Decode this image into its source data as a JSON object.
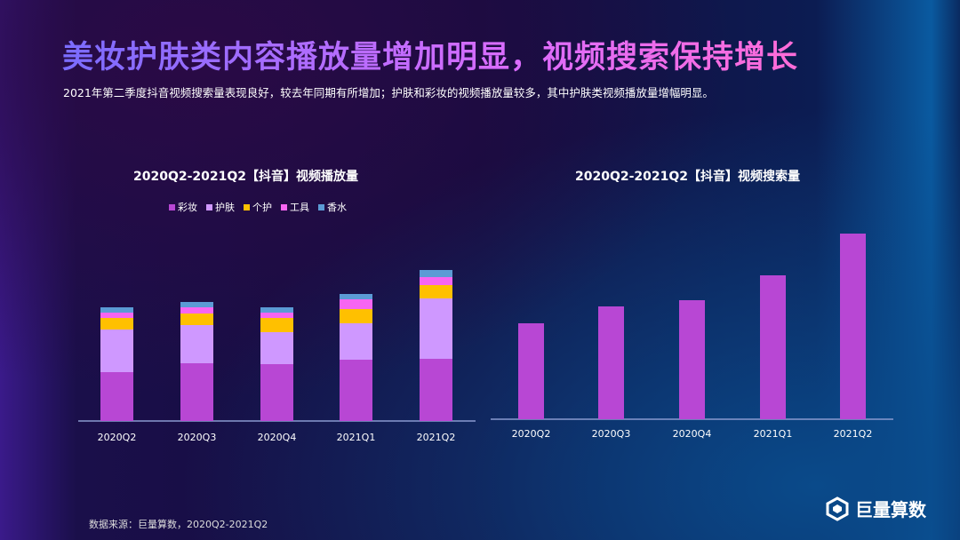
{
  "title": "美妆护肤类内容播放量增加明显，视频搜索保持增长",
  "subtitle": "2021年第二季度抖音视频搜索量表现良好，较去年同期有所增加；护肤和彩妆的视频播放量较多，其中护肤类视频播放量增幅明显。",
  "source": "数据来源：巨量算数，2020Q2-2021Q2",
  "logo_text": "巨量算数",
  "chart_data": [
    {
      "type": "bar",
      "stacked": true,
      "title": "2020Q2-2021Q2【抖音】视频播放量",
      "categories": [
        "2020Q2",
        "2020Q3",
        "2020Q4",
        "2021Q1",
        "2021Q2"
      ],
      "legend_position": "top",
      "series": [
        {
          "name": "彩妆",
          "color": "#b847d4",
          "values": [
            55,
            65,
            64,
            69,
            70
          ]
        },
        {
          "name": "护肤",
          "color": "#cf98ff",
          "values": [
            48,
            43,
            36,
            41,
            68
          ]
        },
        {
          "name": "个护",
          "color": "#ffc000",
          "values": [
            13,
            13,
            16,
            16,
            15
          ]
        },
        {
          "name": "工具",
          "color": "#f765f2",
          "values": [
            6,
            7,
            6,
            11,
            9
          ]
        },
        {
          "name": "香水",
          "color": "#5b9bd5",
          "values": [
            6,
            6,
            6,
            6,
            8
          ]
        }
      ],
      "note": "relative units; no value axis shown"
    },
    {
      "type": "bar",
      "title": "2020Q2-2021Q2【抖音】视频搜索量",
      "categories": [
        "2020Q2",
        "2020Q3",
        "2020Q4",
        "2021Q1",
        "2021Q2"
      ],
      "color": "#b847d4",
      "values": [
        108,
        127,
        134,
        162,
        209
      ],
      "note": "relative units; no value axis shown"
    }
  ]
}
